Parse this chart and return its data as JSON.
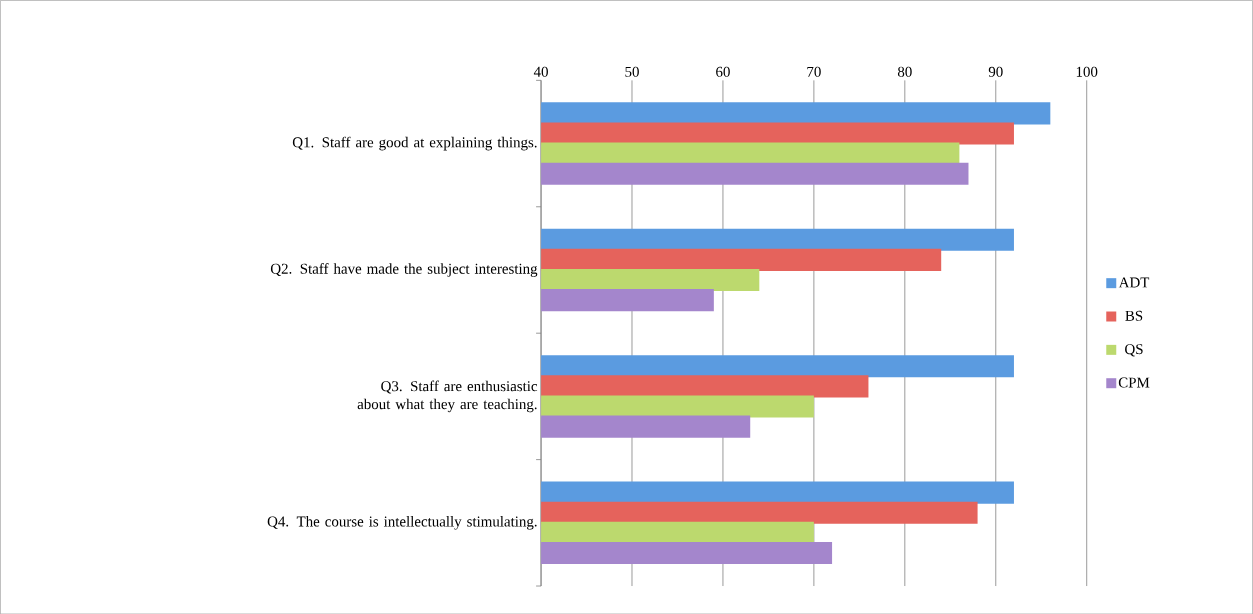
{
  "chart_data": {
    "type": "bar",
    "orientation": "horizontal",
    "categories": [
      "Q1. Staff are good at explaining things.",
      "Q2. Staff have made the subject interesting",
      "Q3. Staff are enthusiastic about what they are teaching.",
      "Q4. The course is intellectually stimulating."
    ],
    "series": [
      {
        "name": "ADT",
        "color": "#5b9be0",
        "values": [
          96,
          92,
          92,
          92
        ]
      },
      {
        "name": "BS",
        "color": "#e5635c",
        "values": [
          92,
          84,
          76,
          88
        ]
      },
      {
        "name": "QS",
        "color": "#bcd96e",
        "values": [
          86,
          64,
          70,
          70
        ]
      },
      {
        "name": "CPM",
        "color": "#a486cc",
        "values": [
          87,
          59,
          63,
          72
        ]
      }
    ],
    "xlim": [
      40,
      100
    ],
    "xticks": [
      40,
      50,
      60,
      70,
      80,
      90,
      100
    ],
    "grid": "x",
    "legend": "right"
  }
}
